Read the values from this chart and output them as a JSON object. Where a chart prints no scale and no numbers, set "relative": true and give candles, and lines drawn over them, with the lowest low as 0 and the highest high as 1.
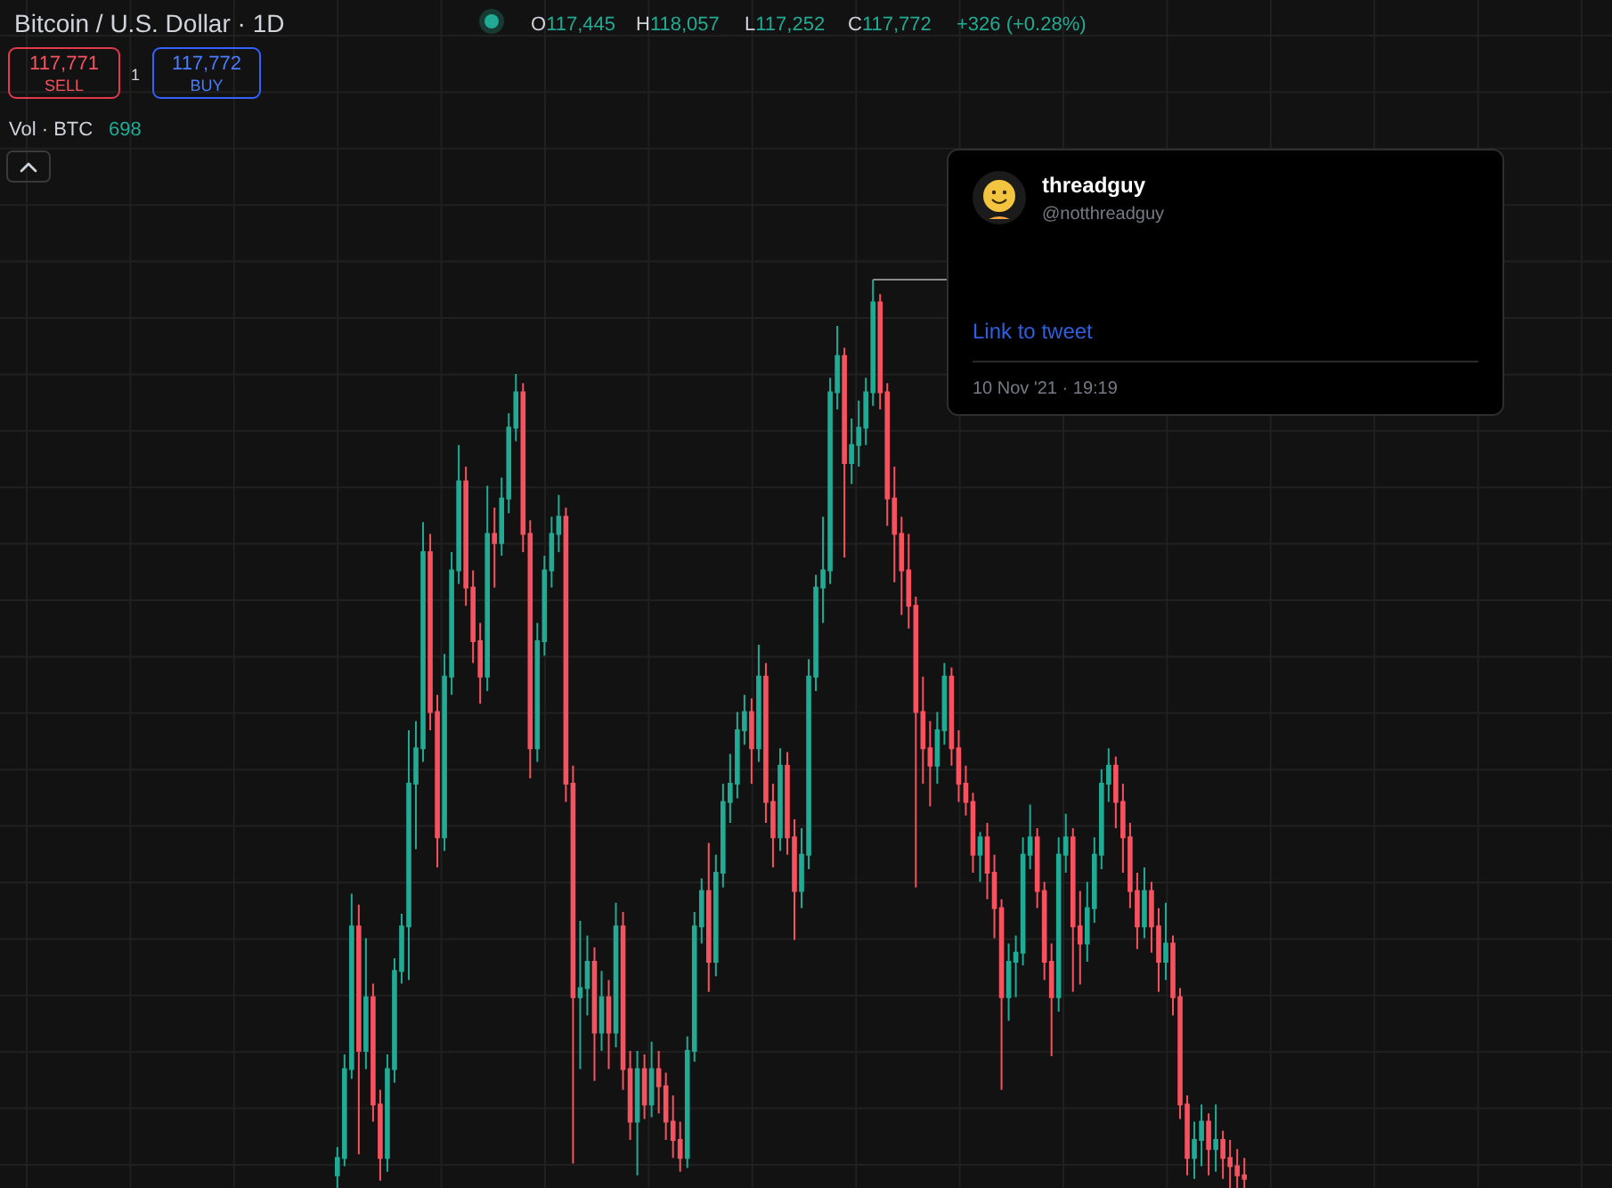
{
  "chart_data": {
    "type": "candlestick",
    "title": "Bitcoin / U.S. Dollar · 1D",
    "relative": true,
    "grid": true,
    "annotations": [
      "O117,445",
      "H118,057",
      "L117,252",
      "C117,772",
      "+326 (+0.28%)",
      "117,771",
      "SELL",
      "1",
      "117,772",
      "BUY",
      "Vol · BTC",
      "698",
      "threadguy",
      "@notthreadguy",
      "Link to tweet",
      "10 Nov '21 · 19:19"
    ],
    "categories": [
      null,
      null,
      null,
      null,
      null,
      null,
      null,
      null,
      null,
      null,
      null,
      null,
      null,
      null,
      null,
      null,
      null,
      null,
      null,
      null,
      null,
      null,
      null,
      null,
      null,
      null,
      null,
      null,
      null,
      null,
      null,
      null,
      null,
      null,
      null,
      null,
      null,
      null,
      null,
      null,
      null,
      null,
      null,
      null,
      null,
      null,
      null,
      null,
      null,
      null,
      null,
      null,
      null,
      null,
      null,
      null,
      null,
      null,
      null,
      null,
      null,
      null,
      null,
      null,
      null,
      null,
      null,
      null,
      null,
      null,
      null,
      null,
      null,
      null,
      null,
      null,
      null,
      null,
      null,
      null,
      null,
      null,
      null,
      null,
      null,
      null,
      null,
      null,
      null,
      null,
      null,
      null,
      null,
      null,
      null,
      null,
      null,
      null,
      null,
      null,
      null,
      null,
      null,
      null,
      null,
      null,
      null,
      null,
      null,
      null,
      null,
      null,
      null,
      null,
      null,
      null,
      null,
      null,
      null,
      null,
      null,
      null,
      null,
      null,
      null,
      null,
      null,
      null
    ],
    "ohlc": [
      [
        0.014,
        0.045,
        0.0,
        0.033
      ],
      [
        0.033,
        0.147,
        0.024,
        0.131
      ],
      [
        0.131,
        0.324,
        0.12,
        0.288
      ],
      [
        0.288,
        0.312,
        0.037,
        0.151
      ],
      [
        0.151,
        0.275,
        0.131,
        0.21
      ],
      [
        0.21,
        0.225,
        0.073,
        0.092
      ],
      [
        0.092,
        0.108,
        0.008,
        0.033
      ],
      [
        0.033,
        0.147,
        0.018,
        0.131
      ],
      [
        0.131,
        0.253,
        0.116,
        0.239
      ],
      [
        0.239,
        0.302,
        0.225,
        0.288
      ],
      [
        0.288,
        0.504,
        0.229,
        0.445
      ],
      [
        0.445,
        0.514,
        0.373,
        0.484
      ],
      [
        0.484,
        0.733,
        0.469,
        0.7
      ],
      [
        0.7,
        0.72,
        0.504,
        0.524
      ],
      [
        0.524,
        0.543,
        0.353,
        0.386
      ],
      [
        0.386,
        0.588,
        0.371,
        0.563
      ],
      [
        0.563,
        0.7,
        0.543,
        0.68
      ],
      [
        0.68,
        0.818,
        0.665,
        0.778
      ],
      [
        0.778,
        0.794,
        0.641,
        0.661
      ],
      [
        0.661,
        0.68,
        0.578,
        0.602
      ],
      [
        0.602,
        0.622,
        0.533,
        0.563
      ],
      [
        0.563,
        0.773,
        0.547,
        0.72
      ],
      [
        0.72,
        0.749,
        0.661,
        0.71
      ],
      [
        0.71,
        0.782,
        0.696,
        0.759
      ],
      [
        0.759,
        0.853,
        0.743,
        0.837
      ],
      [
        0.837,
        0.896,
        0.822,
        0.876
      ],
      [
        0.876,
        0.886,
        0.7,
        0.72
      ],
      [
        0.72,
        0.735,
        0.451,
        0.484
      ],
      [
        0.484,
        0.622,
        0.469,
        0.602
      ],
      [
        0.602,
        0.696,
        0.586,
        0.68
      ],
      [
        0.68,
        0.739,
        0.661,
        0.72
      ],
      [
        0.72,
        0.763,
        0.7,
        0.739
      ],
      [
        0.739,
        0.749,
        0.425,
        0.445
      ],
      [
        0.445,
        0.465,
        0.027,
        0.21
      ],
      [
        0.21,
        0.294,
        0.131,
        0.22
      ],
      [
        0.22,
        0.278,
        0.19,
        0.249
      ],
      [
        0.249,
        0.265,
        0.118,
        0.171
      ],
      [
        0.171,
        0.239,
        0.151,
        0.21
      ],
      [
        0.21,
        0.229,
        0.131,
        0.171
      ],
      [
        0.171,
        0.314,
        0.155,
        0.288
      ],
      [
        0.288,
        0.304,
        0.108,
        0.131
      ],
      [
        0.131,
        0.151,
        0.053,
        0.073
      ],
      [
        0.073,
        0.151,
        0.014,
        0.131
      ],
      [
        0.131,
        0.147,
        0.076,
        0.092
      ],
      [
        0.092,
        0.161,
        0.078,
        0.131
      ],
      [
        0.131,
        0.151,
        0.082,
        0.112
      ],
      [
        0.112,
        0.127,
        0.053,
        0.073
      ],
      [
        0.073,
        0.102,
        0.033,
        0.053
      ],
      [
        0.053,
        0.073,
        0.018,
        0.033
      ],
      [
        0.033,
        0.167,
        0.022,
        0.151
      ],
      [
        0.151,
        0.304,
        0.139,
        0.288
      ],
      [
        0.288,
        0.341,
        0.269,
        0.327
      ],
      [
        0.327,
        0.38,
        0.216,
        0.249
      ],
      [
        0.249,
        0.367,
        0.233,
        0.347
      ],
      [
        0.347,
        0.445,
        0.331,
        0.425
      ],
      [
        0.425,
        0.478,
        0.402,
        0.445
      ],
      [
        0.445,
        0.524,
        0.429,
        0.504
      ],
      [
        0.504,
        0.543,
        0.488,
        0.524
      ],
      [
        0.524,
        0.539,
        0.445,
        0.484
      ],
      [
        0.484,
        0.598,
        0.469,
        0.563
      ],
      [
        0.563,
        0.578,
        0.402,
        0.425
      ],
      [
        0.425,
        0.445,
        0.353,
        0.386
      ],
      [
        0.386,
        0.484,
        0.371,
        0.465
      ],
      [
        0.465,
        0.48,
        0.367,
        0.386
      ],
      [
        0.386,
        0.406,
        0.273,
        0.327
      ],
      [
        0.327,
        0.396,
        0.308,
        0.367
      ],
      [
        0.367,
        0.582,
        0.351,
        0.563
      ],
      [
        0.563,
        0.675,
        0.547,
        0.661
      ],
      [
        0.661,
        0.739,
        0.622,
        0.68
      ],
      [
        0.68,
        0.892,
        0.665,
        0.876
      ],
      [
        0.876,
        0.949,
        0.857,
        0.916
      ],
      [
        0.916,
        0.925,
        0.694,
        0.798
      ],
      [
        0.798,
        0.847,
        0.775,
        0.818
      ],
      [
        0.818,
        0.867,
        0.794,
        0.837
      ],
      [
        0.837,
        0.892,
        0.818,
        0.876
      ],
      [
        0.876,
        1.0,
        0.861,
        0.975
      ],
      [
        0.975,
        0.984,
        0.857,
        0.876
      ],
      [
        0.876,
        0.886,
        0.729,
        0.759
      ],
      [
        0.759,
        0.794,
        0.667,
        0.72
      ],
      [
        0.72,
        0.739,
        0.631,
        0.68
      ],
      [
        0.68,
        0.72,
        0.616,
        0.641
      ],
      [
        0.641,
        0.651,
        0.331,
        0.524
      ],
      [
        0.524,
        0.563,
        0.445,
        0.484
      ],
      [
        0.484,
        0.514,
        0.42,
        0.465
      ],
      [
        0.465,
        0.524,
        0.445,
        0.504
      ],
      [
        0.504,
        0.578,
        0.488,
        0.563
      ],
      [
        0.563,
        0.573,
        0.465,
        0.484
      ],
      [
        0.484,
        0.504,
        0.425,
        0.445
      ],
      [
        0.445,
        0.465,
        0.41,
        0.425
      ],
      [
        0.425,
        0.435,
        0.347,
        0.367
      ],
      [
        0.367,
        0.392,
        0.337,
        0.386
      ],
      [
        0.386,
        0.402,
        0.318,
        0.347
      ],
      [
        0.347,
        0.367,
        0.275,
        0.308
      ],
      [
        0.308,
        0.318,
        0.108,
        0.21
      ],
      [
        0.21,
        0.269,
        0.184,
        0.249
      ],
      [
        0.249,
        0.278,
        0.21,
        0.259
      ],
      [
        0.259,
        0.386,
        0.245,
        0.367
      ],
      [
        0.367,
        0.422,
        0.351,
        0.386
      ],
      [
        0.386,
        0.396,
        0.308,
        0.327
      ],
      [
        0.327,
        0.337,
        0.229,
        0.249
      ],
      [
        0.249,
        0.269,
        0.145,
        0.21
      ],
      [
        0.21,
        0.386,
        0.194,
        0.367
      ],
      [
        0.367,
        0.412,
        0.347,
        0.386
      ],
      [
        0.386,
        0.396,
        0.216,
        0.288
      ],
      [
        0.288,
        0.327,
        0.224,
        0.269
      ],
      [
        0.269,
        0.337,
        0.249,
        0.308
      ],
      [
        0.308,
        0.386,
        0.292,
        0.367
      ],
      [
        0.367,
        0.461,
        0.351,
        0.445
      ],
      [
        0.445,
        0.484,
        0.425,
        0.465
      ],
      [
        0.465,
        0.475,
        0.396,
        0.425
      ],
      [
        0.425,
        0.445,
        0.347,
        0.386
      ],
      [
        0.386,
        0.402,
        0.308,
        0.327
      ],
      [
        0.327,
        0.347,
        0.263,
        0.288
      ],
      [
        0.288,
        0.353,
        0.275,
        0.327
      ],
      [
        0.327,
        0.337,
        0.259,
        0.288
      ],
      [
        0.288,
        0.308,
        0.216,
        0.249
      ],
      [
        0.249,
        0.314,
        0.229,
        0.269
      ],
      [
        0.269,
        0.278,
        0.19,
        0.21
      ],
      [
        0.21,
        0.22,
        0.076,
        0.092
      ],
      [
        0.092,
        0.102,
        0.014,
        0.033
      ],
      [
        0.033,
        0.073,
        0.01,
        0.053
      ],
      [
        0.053,
        0.092,
        0.024,
        0.073
      ],
      [
        0.073,
        0.082,
        0.014,
        0.043
      ],
      [
        0.043,
        0.092,
        0.018,
        0.053
      ],
      [
        0.053,
        0.063,
        0.01,
        0.033
      ],
      [
        0.033,
        0.053,
        0.0,
        0.024
      ],
      [
        0.024,
        0.043,
        0.0,
        0.014
      ],
      [
        0.014,
        0.033,
        0.0,
        0.01
      ]
    ],
    "colors": [
      "#22ab94",
      "#22ab94",
      "#22ab94",
      "#f7525f",
      "#22ab94",
      "#f7525f",
      "#f7525f",
      "#22ab94",
      "#22ab94",
      "#22ab94",
      "#22ab94",
      "#22ab94",
      "#22ab94",
      "#f7525f",
      "#f7525f",
      "#22ab94",
      "#22ab94",
      "#22ab94",
      "#f7525f",
      "#f7525f",
      "#f7525f",
      "#22ab94",
      "#f7525f",
      "#22ab94",
      "#22ab94",
      "#22ab94",
      "#f7525f",
      "#f7525f",
      "#22ab94",
      "#22ab94",
      "#22ab94",
      "#22ab94",
      "#f7525f",
      "#f7525f",
      "#22ab94",
      "#22ab94",
      "#f7525f",
      "#22ab94",
      "#f7525f",
      "#22ab94",
      "#f7525f",
      "#f7525f",
      "#22ab94",
      "#f7525f",
      "#22ab94",
      "#f7525f",
      "#f7525f",
      "#f7525f",
      "#f7525f",
      "#22ab94",
      "#22ab94",
      "#22ab94",
      "#f7525f",
      "#22ab94",
      "#22ab94",
      "#22ab94",
      "#22ab94",
      "#22ab94",
      "#f7525f",
      "#22ab94",
      "#f7525f",
      "#f7525f",
      "#22ab94",
      "#f7525f",
      "#f7525f",
      "#22ab94",
      "#22ab94",
      "#22ab94",
      "#22ab94",
      "#22ab94",
      "#22ab94",
      "#f7525f",
      "#22ab94",
      "#22ab94",
      "#22ab94",
      "#22ab94",
      "#f7525f",
      "#f7525f",
      "#f7525f",
      "#f7525f",
      "#f7525f",
      "#f7525f",
      "#f7525f",
      "#f7525f",
      "#22ab94",
      "#22ab94",
      "#f7525f",
      "#f7525f",
      "#f7525f",
      "#f7525f",
      "#22ab94",
      "#f7525f",
      "#f7525f",
      "#f7525f",
      "#22ab94",
      "#22ab94",
      "#22ab94",
      "#22ab94",
      "#f7525f",
      "#f7525f",
      "#f7525f",
      "#22ab94",
      "#22ab94",
      "#f7525f",
      "#f7525f",
      "#22ab94",
      "#22ab94",
      "#22ab94",
      "#22ab94",
      "#f7525f",
      "#f7525f",
      "#f7525f",
      "#f7525f",
      "#22ab94",
      "#f7525f",
      "#f7525f",
      "#22ab94",
      "#f7525f",
      "#f7525f",
      "#f7525f",
      "#22ab94",
      "#22ab94",
      "#f7525f",
      "#22ab94",
      "#f7525f",
      "#f7525f",
      "#f7525f",
      "#f7525f"
    ]
  }
}
